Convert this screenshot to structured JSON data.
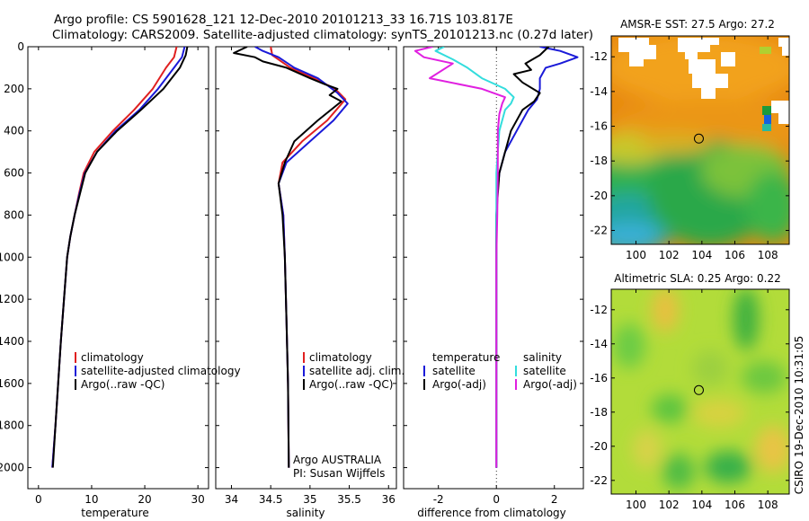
{
  "figure": {
    "title_line1": "Argo profile: CS 5901628_121 12-Dec-2010 20101213_33 16.71S 103.817E",
    "title_line2": "Climatology: CARS2009. Satellite-adjusted climatology: synTS_20101213.nc (0.27d later)",
    "footer": "CSIRO 19-Dec-2010 10:31:05",
    "colors": {
      "red": "#e02020",
      "blue": "#1a1ad8",
      "black": "#000000",
      "cyan": "#33dddd",
      "magenta": "#e020e0"
    }
  },
  "chart_data": [
    {
      "type": "line",
      "xlabel": "temperature",
      "ylabel": "",
      "xlim": [
        -2,
        32
      ],
      "ylim": [
        0,
        2100
      ],
      "y_inverted": true,
      "x_ticks": [
        0,
        10,
        20,
        30
      ],
      "y_ticks": [
        0,
        200,
        400,
        600,
        800,
        1000,
        1200,
        1400,
        1600,
        1800,
        2000
      ],
      "legend": [
        "climatology",
        "satellite-adjusted climatology",
        "Argo(..raw -QC)"
      ],
      "series": [
        {
          "name": "climatology",
          "color": "red",
          "points": [
            [
              26,
              0
            ],
            [
              25.5,
              50
            ],
            [
              24,
              100
            ],
            [
              21.5,
              200
            ],
            [
              18,
              300
            ],
            [
              14,
              400
            ],
            [
              10.5,
              500
            ],
            [
              8.5,
              600
            ],
            [
              7.6,
              700
            ],
            [
              6.8,
              800
            ],
            [
              6,
              900
            ],
            [
              5.4,
              1000
            ],
            [
              4.8,
              1200
            ],
            [
              4.2,
              1400
            ],
            [
              3.7,
              1600
            ],
            [
              3.2,
              1800
            ],
            [
              2.6,
              2000
            ]
          ]
        },
        {
          "name": "satellite-adjusted climatology",
          "color": "blue",
          "points": [
            [
              27.5,
              0
            ],
            [
              27,
              50
            ],
            [
              25.5,
              100
            ],
            [
              22.5,
              200
            ],
            [
              19,
              300
            ],
            [
              14.5,
              400
            ],
            [
              11,
              500
            ],
            [
              8.7,
              600
            ],
            [
              7.7,
              700
            ],
            [
              6.8,
              800
            ],
            [
              6,
              900
            ],
            [
              5.4,
              1000
            ],
            [
              4.8,
              1200
            ],
            [
              4.2,
              1400
            ],
            [
              3.7,
              1600
            ],
            [
              3.2,
              1800
            ],
            [
              2.6,
              2000
            ]
          ]
        },
        {
          "name": "Argo(..raw -QC)",
          "color": "black",
          "points": [
            [
              28,
              0
            ],
            [
              27.7,
              40
            ],
            [
              26.6,
              100
            ],
            [
              23.5,
              200
            ],
            [
              19.3,
              300
            ],
            [
              14.8,
              400
            ],
            [
              11,
              500
            ],
            [
              8.8,
              600
            ],
            [
              7.8,
              700
            ],
            [
              6.8,
              800
            ],
            [
              6,
              900
            ],
            [
              5.4,
              1000
            ],
            [
              4.8,
              1200
            ],
            [
              4.2,
              1400
            ],
            [
              3.7,
              1600
            ],
            [
              3.2,
              1800
            ],
            [
              2.7,
              2000
            ]
          ]
        }
      ]
    },
    {
      "type": "line",
      "xlabel": "salinity",
      "ylabel": "",
      "xlim": [
        33.8,
        36.1
      ],
      "ylim": [
        0,
        2100
      ],
      "y_inverted": true,
      "x_ticks": [
        34,
        34.5,
        35,
        35.5,
        36
      ],
      "legend": [
        "climatology",
        "satellite adj. clim.",
        "Argo(..raw -QC)"
      ],
      "annotations": [
        "Argo AUSTRALIA",
        "PI: Susan Wijffels"
      ],
      "series": [
        {
          "name": "climatology",
          "color": "red",
          "points": [
            [
              34.5,
              0
            ],
            [
              34.52,
              40
            ],
            [
              34.75,
              100
            ],
            [
              35.05,
              150
            ],
            [
              35.32,
              200
            ],
            [
              35.45,
              250
            ],
            [
              35.22,
              350
            ],
            [
              34.9,
              450
            ],
            [
              34.65,
              550
            ],
            [
              34.6,
              650
            ],
            [
              34.66,
              800
            ],
            [
              34.68,
              1000
            ],
            [
              34.7,
              1300
            ],
            [
              34.72,
              1600
            ],
            [
              34.73,
              2000
            ]
          ]
        },
        {
          "name": "satellite adj. clim.",
          "color": "blue",
          "points": [
            [
              34.3,
              0
            ],
            [
              34.4,
              20
            ],
            [
              34.6,
              50
            ],
            [
              34.8,
              100
            ],
            [
              35.1,
              150
            ],
            [
              35.35,
              220
            ],
            [
              35.48,
              270
            ],
            [
              35.3,
              350
            ],
            [
              35.0,
              450
            ],
            [
              34.7,
              550
            ],
            [
              34.6,
              650
            ],
            [
              34.66,
              800
            ],
            [
              34.68,
              1000
            ],
            [
              34.7,
              1300
            ],
            [
              34.72,
              1600
            ],
            [
              34.73,
              2000
            ]
          ]
        },
        {
          "name": "Argo(..raw -QC)",
          "color": "black",
          "points": [
            [
              34.2,
              0
            ],
            [
              34.03,
              30
            ],
            [
              34.3,
              50
            ],
            [
              34.4,
              70
            ],
            [
              34.7,
              100
            ],
            [
              35.0,
              150
            ],
            [
              35.2,
              180
            ],
            [
              35.35,
              200
            ],
            [
              35.25,
              230
            ],
            [
              35.4,
              260
            ],
            [
              35.1,
              350
            ],
            [
              34.8,
              450
            ],
            [
              34.68,
              550
            ],
            [
              34.6,
              650
            ],
            [
              34.65,
              800
            ],
            [
              34.68,
              1000
            ],
            [
              34.7,
              1300
            ],
            [
              34.72,
              1600
            ],
            [
              34.73,
              2000
            ]
          ]
        }
      ]
    },
    {
      "type": "line",
      "xlabel": "difference from climatology",
      "ylabel": "",
      "xlim": [
        -3.2,
        3
      ],
      "ylim": [
        0,
        2100
      ],
      "y_inverted": true,
      "x_ticks": [
        -2,
        0,
        2
      ],
      "zero_line": true,
      "legend": [
        "temperature",
        "satellite",
        "Argo(-adj)",
        "salinity",
        "satellite",
        "Argo(-adj)"
      ],
      "legend_titles": [
        "temperature",
        "salinity"
      ],
      "series": [
        {
          "name": "temperature satellite",
          "color": "blue",
          "points": [
            [
              1.5,
              0
            ],
            [
              2.2,
              20
            ],
            [
              2.8,
              50
            ],
            [
              2.2,
              80
            ],
            [
              1.7,
              100
            ],
            [
              1.5,
              150
            ],
            [
              1.5,
              200
            ],
            [
              1.4,
              250
            ],
            [
              1.1,
              300
            ],
            [
              0.7,
              400
            ],
            [
              0.3,
              500
            ],
            [
              0.1,
              600
            ],
            [
              0.03,
              700
            ],
            [
              0,
              800
            ],
            [
              0,
              1000
            ],
            [
              0,
              1500
            ],
            [
              0,
              2000
            ]
          ]
        },
        {
          "name": "temperature Argo(-adj)",
          "color": "black",
          "points": [
            [
              1.8,
              0
            ],
            [
              1.5,
              40
            ],
            [
              1.0,
              80
            ],
            [
              1.2,
              110
            ],
            [
              0.6,
              130
            ],
            [
              0.9,
              170
            ],
            [
              1.5,
              220
            ],
            [
              1.3,
              260
            ],
            [
              0.9,
              300
            ],
            [
              0.5,
              400
            ],
            [
              0.3,
              500
            ],
            [
              0.1,
              600
            ],
            [
              0.05,
              700
            ],
            [
              0,
              800
            ],
            [
              0,
              1000
            ],
            [
              0,
              1500
            ],
            [
              0,
              2000
            ]
          ]
        },
        {
          "name": "salinity satellite",
          "color": "cyan",
          "points": [
            [
              -1.8,
              0
            ],
            [
              -2.1,
              20
            ],
            [
              -1.5,
              60
            ],
            [
              -1.0,
              100
            ],
            [
              -0.5,
              150
            ],
            [
              0.3,
              200
            ],
            [
              0.6,
              240
            ],
            [
              0.5,
              270
            ],
            [
              0.3,
              300
            ],
            [
              0.1,
              400
            ],
            [
              0.05,
              500
            ],
            [
              0,
              600
            ],
            [
              0,
              800
            ],
            [
              0,
              1000
            ],
            [
              0,
              1500
            ],
            [
              0,
              2000
            ]
          ]
        },
        {
          "name": "salinity Argo(-adj)",
          "color": "magenta",
          "points": [
            [
              -2.2,
              0
            ],
            [
              -2.8,
              20
            ],
            [
              -2.5,
              50
            ],
            [
              -1.5,
              80
            ],
            [
              -2.3,
              150
            ],
            [
              -0.5,
              200
            ],
            [
              0.3,
              240
            ],
            [
              0.2,
              270
            ],
            [
              0.1,
              320
            ],
            [
              0.05,
              400
            ],
            [
              0.05,
              600
            ],
            [
              0.03,
              800
            ],
            [
              0,
              1000
            ],
            [
              0,
              1500
            ],
            [
              0,
              2000
            ]
          ]
        }
      ]
    },
    {
      "type": "heatmap",
      "title": "AMSR-E SST: 27.5 Argo: 27.2",
      "xlim": [
        98.5,
        109.3
      ],
      "ylim": [
        -22.8,
        -10.8
      ],
      "x_ticks": [
        100,
        102,
        104,
        106,
        108
      ],
      "y_ticks": [
        -12,
        -14,
        -16,
        -18,
        -20,
        -22
      ],
      "marker": [
        103.817,
        -16.71
      ]
    },
    {
      "type": "heatmap",
      "title": "Altimetric SLA: 0.25 Argo: 0.22",
      "xlim": [
        98.5,
        109.3
      ],
      "ylim": [
        -22.8,
        -10.8
      ],
      "x_ticks": [
        100,
        102,
        104,
        106,
        108
      ],
      "y_ticks": [
        -12,
        -14,
        -16,
        -18,
        -20,
        -22
      ],
      "marker": [
        103.817,
        -16.71
      ]
    }
  ]
}
